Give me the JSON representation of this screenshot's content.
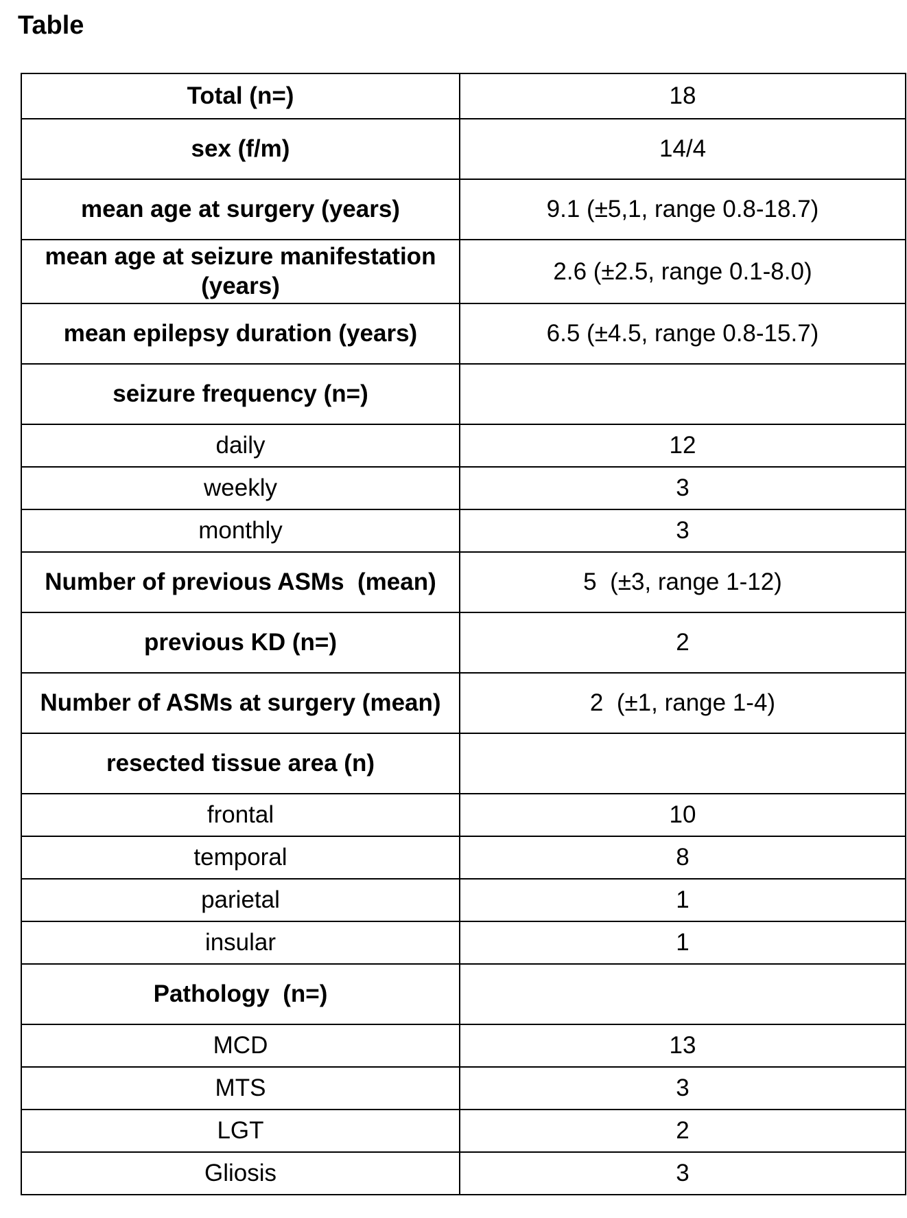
{
  "page": {
    "title": "Table"
  },
  "table": {
    "rows": [
      {
        "label": "Total (n=)",
        "value": "18"
      },
      {
        "label": "sex (f/m)",
        "value": "14/4"
      },
      {
        "label": "mean age at surgery (years)",
        "value": "9.1 (±5,1, range 0.8-18.7)"
      },
      {
        "label": "mean age at seizure manifestation (years)",
        "value": "2.6 (±2.5, range 0.1-8.0)"
      },
      {
        "label": "mean epilepsy duration (years)",
        "value": "6.5 (±4.5, range 0.8-15.7)"
      },
      {
        "label": "seizure frequency (n=)",
        "value": ""
      },
      {
        "label": "daily",
        "value": "12"
      },
      {
        "label": "weekly",
        "value": "3"
      },
      {
        "label": "monthly",
        "value": "3"
      },
      {
        "label": "Number of previous ASMs  (mean)",
        "value": "5  (±3, range 1-12)"
      },
      {
        "label": "previous KD (n=)",
        "value": "2"
      },
      {
        "label": "Number of ASMs at surgery (mean)",
        "value": "2  (±1, range 1-4)"
      },
      {
        "label": "resected tissue area (n)",
        "value": ""
      },
      {
        "label": "frontal",
        "value": "10"
      },
      {
        "label": "temporal",
        "value": "8"
      },
      {
        "label": "parietal",
        "value": "1"
      },
      {
        "label": "insular",
        "value": "1"
      },
      {
        "label": "Pathology  (n=)",
        "value": ""
      },
      {
        "label": "MCD",
        "value": "13"
      },
      {
        "label": "MTS",
        "value": "3"
      },
      {
        "label": "LGT",
        "value": "2"
      },
      {
        "label": "Gliosis",
        "value": "3"
      }
    ]
  }
}
